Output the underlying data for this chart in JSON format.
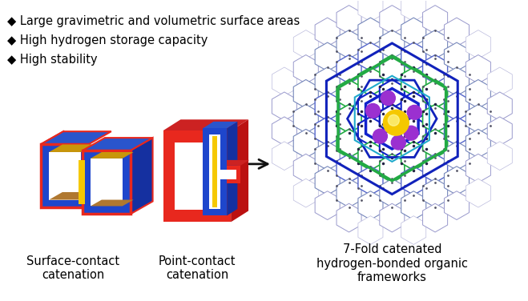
{
  "background_color": "#ffffff",
  "bullet_points": [
    "◆ Large gravimetric and volumetric surface areas",
    "◆ High hydrogen storage capacity",
    "◆ High stability"
  ],
  "bullet_fontsize": 10.5,
  "label1": "Surface-contact\ncatenation",
  "label2": "Point-contact\ncatenation",
  "label3": "7-Fold catenated\nhydrogen-bonded organic\nframeworks",
  "label_fontsize": 10.5,
  "arrow_color": "#111111",
  "fig_width": 6.59,
  "fig_height": 3.76,
  "red_color": "#e8281e",
  "blue_color": "#1e46cc",
  "blue_dark": "#1530a0",
  "blue_mid": "#2a55dd",
  "blue_light": "#4066dd",
  "gold_color": "#c8960a",
  "yellow_color": "#f5c800",
  "orange_color": "#e08020",
  "purple_color": "#9b30d0",
  "green_color": "#22aa44",
  "teal_color": "#20aacc",
  "darkblue_color": "#1122cc",
  "lavender_color": "#8899dd",
  "gray_color": "#aaaaaa",
  "brown_color": "#b07830"
}
